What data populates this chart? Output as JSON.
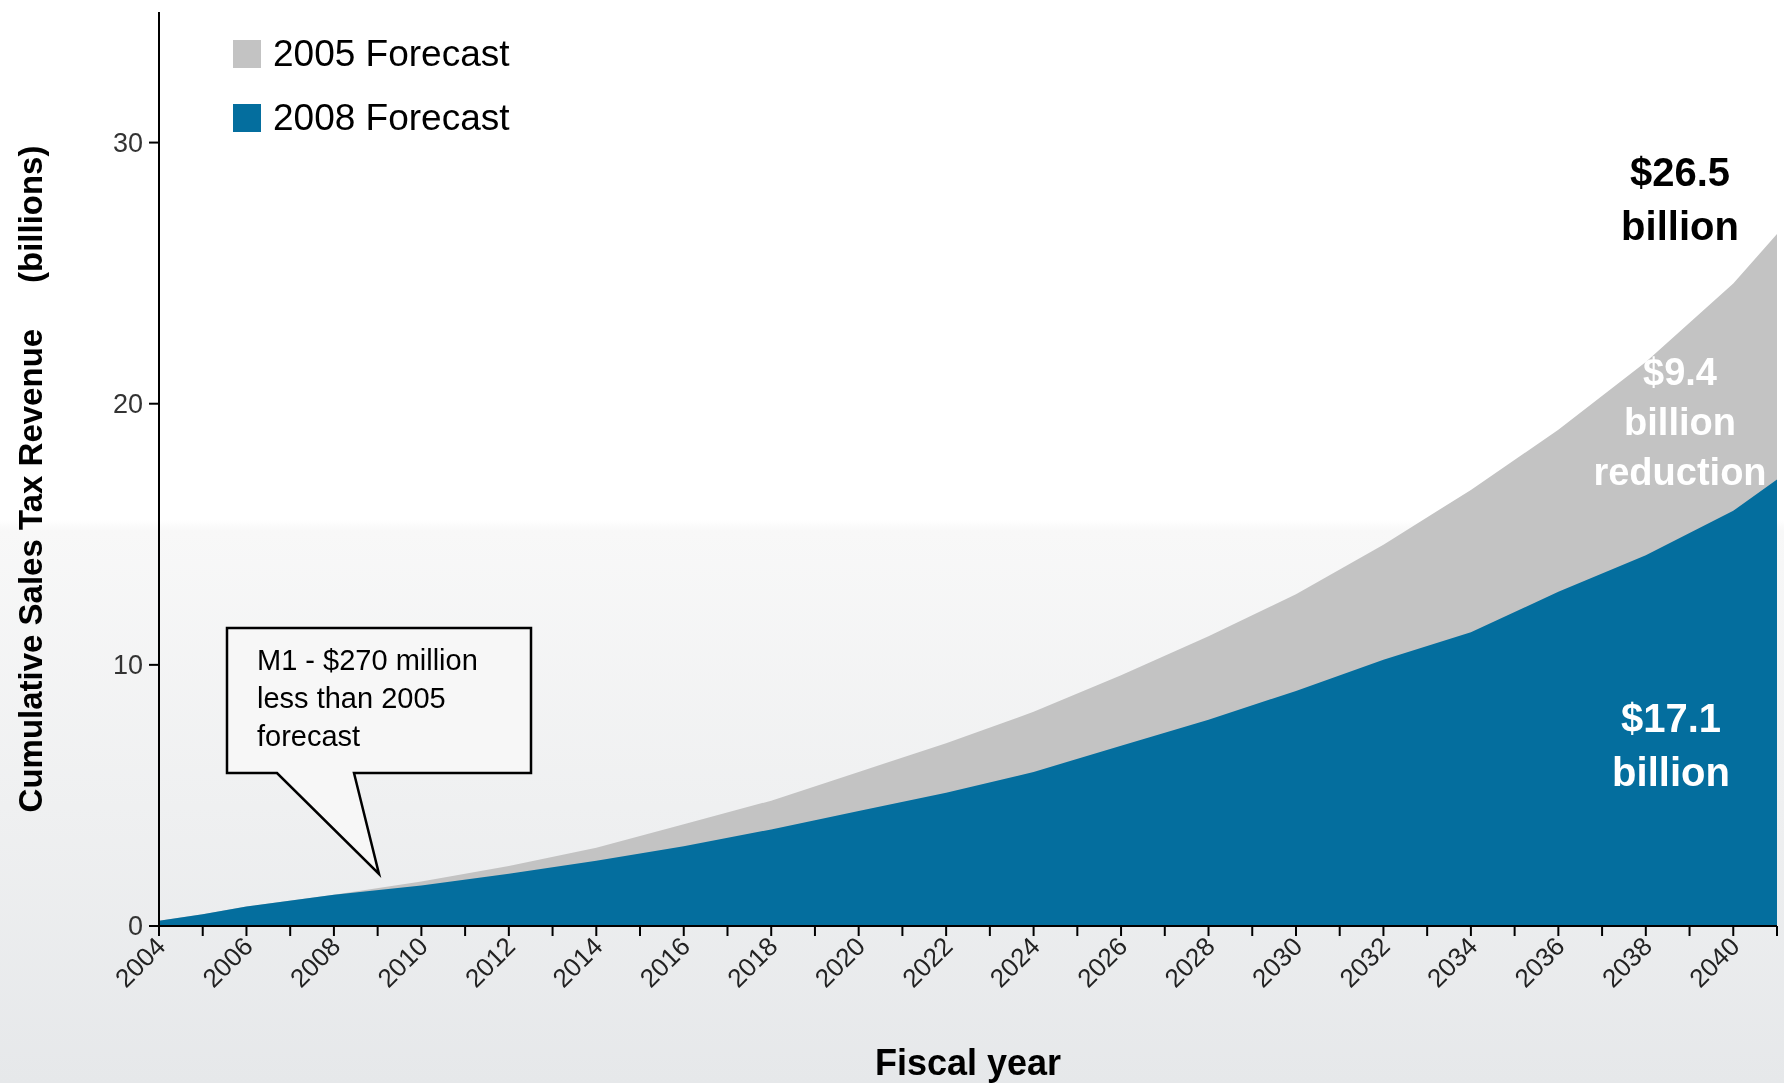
{
  "chart_data": {
    "type": "area",
    "xlabel": "Fiscal year",
    "ylabel": "Cumulative Sales Tax Revenue     (billions)",
    "x": [
      2004,
      2005,
      2006,
      2008,
      2010,
      2012,
      2014,
      2016,
      2018,
      2020,
      2022,
      2024,
      2026,
      2028,
      2030,
      2032,
      2034,
      2036,
      2038,
      2040,
      2041
    ],
    "series": [
      {
        "name": "2005 Forecast",
        "color": "#c3c3c3",
        "values": [
          0.2,
          0.45,
          0.75,
          1.2,
          1.7,
          2.3,
          3.0,
          3.9,
          4.8,
          5.9,
          7.0,
          8.2,
          9.6,
          11.1,
          12.7,
          14.6,
          16.7,
          19.0,
          21.6,
          24.6,
          26.5
        ]
      },
      {
        "name": "2008 Forecast",
        "color": "#046e9e",
        "values": [
          0.2,
          0.45,
          0.75,
          1.2,
          1.55,
          2.0,
          2.5,
          3.05,
          3.7,
          4.4,
          5.1,
          5.9,
          6.9,
          7.9,
          9.0,
          10.2,
          11.25,
          12.8,
          14.2,
          15.9,
          17.1
        ]
      }
    ],
    "xlim": [
      2004,
      2041
    ],
    "xticks": [
      2004,
      2006,
      2008,
      2010,
      2012,
      2014,
      2016,
      2018,
      2020,
      2022,
      2024,
      2026,
      2028,
      2030,
      2032,
      2034,
      2036,
      2038,
      2040
    ],
    "ylim": [
      0,
      35
    ],
    "yticks": [
      0,
      10,
      20,
      30
    ],
    "grid": false,
    "legend": "top left",
    "annotations": [
      "M1 - $270 million less than 2005 forecast",
      "$26.5 billion",
      "$9.4 billion reduction",
      "$17.1 billion"
    ]
  }
}
